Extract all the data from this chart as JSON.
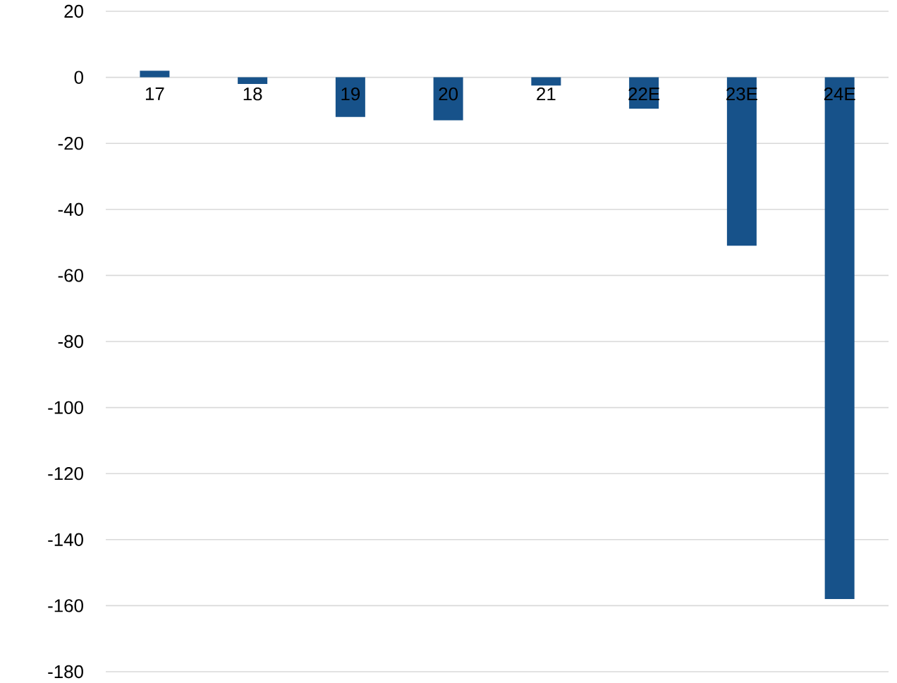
{
  "chart_data": {
    "type": "bar",
    "categories": [
      "17",
      "18",
      "19",
      "20",
      "21",
      "22E",
      "23E",
      "24E"
    ],
    "values": [
      2,
      -2,
      -12,
      -13,
      -2.5,
      -9.5,
      -51,
      -158
    ],
    "color": "#17528a",
    "ylim": [
      -180,
      20
    ],
    "yticks": [
      -180,
      -160,
      -140,
      -120,
      -100,
      -80,
      -60,
      -40,
      -20,
      0,
      20
    ],
    "grid": "y"
  }
}
